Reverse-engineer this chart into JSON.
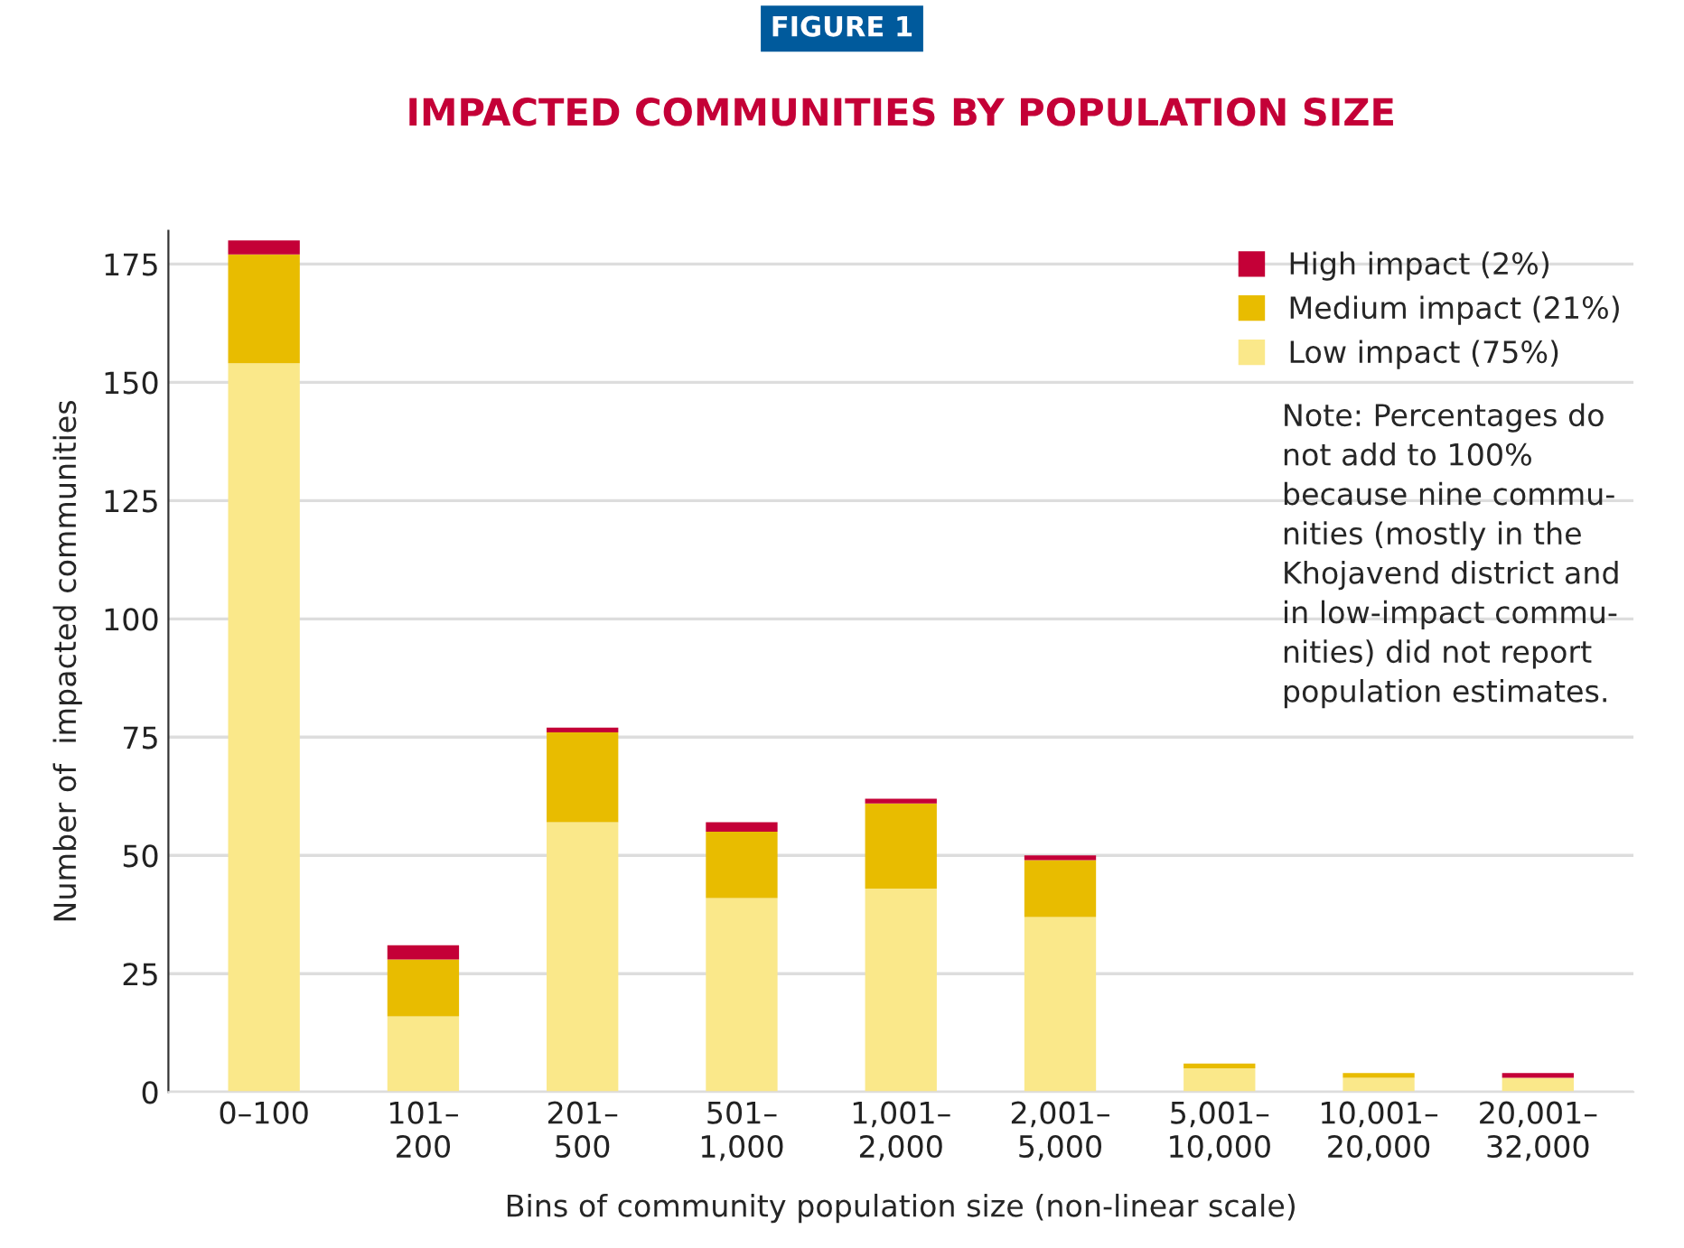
{
  "chart_data": {
    "type": "bar",
    "stacked": true,
    "title": "IMPACTED COMMUNITIES BY POPULATION SIZE",
    "ylabel": "Number of  impacted communities",
    "xlabel": "Bins of community population size (non-linear scale)",
    "categories": [
      "0–100",
      "101–\n200",
      "201–\n500",
      "501–\n1,000",
      "1,001–\n2,000",
      "2,001–\n5,000",
      "5,001–\n10,000",
      "10,001–\n20,000",
      "20,001–\n32,000"
    ],
    "series": [
      {
        "name": "Low impact (75%)",
        "color": "#fae88a",
        "values": [
          154,
          16,
          57,
          41,
          43,
          37,
          5,
          3,
          3
        ]
      },
      {
        "name": "Medium impact (21%)",
        "color": "#e8bc00",
        "values": [
          23,
          12,
          19,
          14,
          18,
          12,
          1,
          1,
          0
        ]
      },
      {
        "name": "High impact (2%)",
        "color": "#c40037",
        "values": [
          3,
          3,
          1,
          2,
          1,
          1,
          0,
          0,
          1
        ]
      }
    ],
    "ylim": [
      0,
      182
    ],
    "yticks": [
      0,
      25,
      50,
      75,
      100,
      125,
      150,
      175
    ],
    "grid": "y",
    "legend": "top right",
    "annotations": [
      "FIGURE 1",
      "Note: Percentages do\nnot add to 100%\nbecause nine commu-\nnities (mostly in the\nKhojavend district and\nin low-impact commu-\nnities) did not report\npopulation estimates."
    ]
  }
}
